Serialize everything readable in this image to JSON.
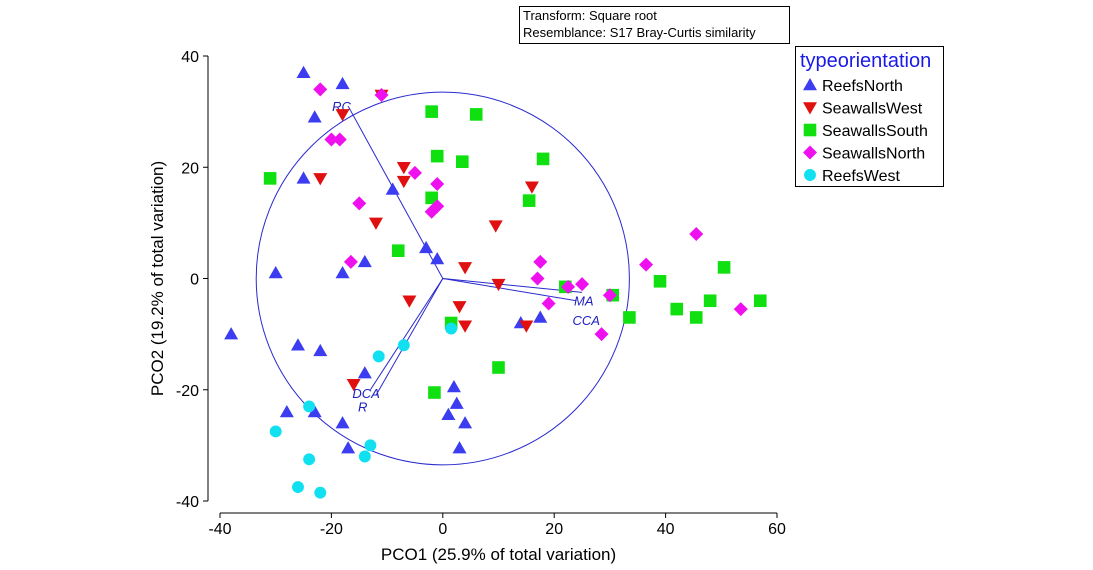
{
  "chart_data": {
    "type": "scatter",
    "title": "",
    "xlabel": "PCO1 (25.9% of total variation)",
    "ylabel": "PCO2 (19.2% of total variation)",
    "xlim": [
      -40,
      60
    ],
    "ylim": [
      -40,
      40
    ],
    "xticks": [
      "-40",
      "-20",
      "0",
      "20",
      "40",
      "60"
    ],
    "yticks": [
      "40",
      "20",
      "0",
      "-20",
      "-40"
    ],
    "info_lines": [
      "Transform: Square root",
      "Resemblance: S17 Bray-Curtis similarity"
    ],
    "legend_title": "typeorientation",
    "legend_position": "top-right",
    "circle_radius": 33.5,
    "vectors": [
      {
        "label": "RC",
        "x": -17,
        "y": 31
      },
      {
        "label": "MA",
        "x": 25,
        "y": -2.5
      },
      {
        "label": "CCA",
        "x": 24,
        "y": -4
      },
      {
        "label": "DCA",
        "x": -13,
        "y": -20
      },
      {
        "label": "R",
        "x": -12,
        "y": -21
      }
    ],
    "series": [
      {
        "name": "ReefsNorth",
        "marker": "triangle-up",
        "color": "#3c3cf0",
        "points": [
          [
            -25,
            37
          ],
          [
            -18,
            35
          ],
          [
            -23,
            29
          ],
          [
            -25,
            18
          ],
          [
            -9,
            16
          ],
          [
            -30,
            1
          ],
          [
            -18,
            1
          ],
          [
            -14,
            3
          ],
          [
            -3,
            5.5
          ],
          [
            -1,
            3.5
          ],
          [
            -38,
            -10
          ],
          [
            -26,
            -12
          ],
          [
            -22,
            -13
          ],
          [
            -14,
            -17
          ],
          [
            -28,
            -24
          ],
          [
            -23,
            -24
          ],
          [
            -18,
            -26
          ],
          [
            -17,
            -30.5
          ],
          [
            2,
            -19.5
          ],
          [
            2.5,
            -22.5
          ],
          [
            1,
            -24.5
          ],
          [
            4,
            -26
          ],
          [
            3,
            -30.5
          ],
          [
            14,
            -8
          ],
          [
            17.5,
            -7
          ]
        ]
      },
      {
        "name": "SeawallsWest",
        "marker": "triangle-down",
        "color": "#e01010",
        "points": [
          [
            -11,
            33
          ],
          [
            -18,
            29.5
          ],
          [
            -22,
            18
          ],
          [
            -7,
            20
          ],
          [
            -7,
            17.5
          ],
          [
            -12,
            10
          ],
          [
            16,
            16.5
          ],
          [
            9.5,
            9.5
          ],
          [
            4,
            2
          ],
          [
            3,
            -5
          ],
          [
            -6,
            -4
          ],
          [
            4,
            -8.5
          ],
          [
            10,
            -1
          ],
          [
            15,
            -8.5
          ],
          [
            -16,
            -19
          ]
        ]
      },
      {
        "name": "SeawallsSouth",
        "marker": "square",
        "color": "#10e010",
        "points": [
          [
            -2,
            30
          ],
          [
            6,
            29.5
          ],
          [
            -31,
            18
          ],
          [
            -1,
            22
          ],
          [
            3.5,
            21
          ],
          [
            18,
            21.5
          ],
          [
            -2,
            14.5
          ],
          [
            15.5,
            14
          ],
          [
            -8,
            5
          ],
          [
            22,
            -1.5
          ],
          [
            30.5,
            -3
          ],
          [
            39,
            -0.5
          ],
          [
            50.5,
            2
          ],
          [
            48,
            -4
          ],
          [
            57,
            -4
          ],
          [
            33.5,
            -7
          ],
          [
            42,
            -5.5
          ],
          [
            45.5,
            -7
          ],
          [
            1.5,
            -8
          ],
          [
            10,
            -16
          ],
          [
            -1.5,
            -20.5
          ]
        ]
      },
      {
        "name": "SeawallsNorth",
        "marker": "diamond",
        "color": "#ee10ee",
        "points": [
          [
            -22,
            34
          ],
          [
            -11,
            33
          ],
          [
            -20,
            25
          ],
          [
            -18.5,
            25
          ],
          [
            -5,
            19
          ],
          [
            -1,
            17
          ],
          [
            -1,
            13
          ],
          [
            -15,
            13.5
          ],
          [
            -2,
            12
          ],
          [
            -16.5,
            3
          ],
          [
            17.5,
            3
          ],
          [
            17,
            0
          ],
          [
            22.5,
            -1.5
          ],
          [
            25,
            -1
          ],
          [
            30,
            -3
          ],
          [
            19,
            -4.5
          ],
          [
            28.5,
            -10
          ],
          [
            36.5,
            2.5
          ],
          [
            45.5,
            8
          ],
          [
            53.5,
            -5.5
          ]
        ]
      },
      {
        "name": "ReefsWest",
        "marker": "circle",
        "color": "#10e0f0",
        "points": [
          [
            -7,
            -12
          ],
          [
            -11.5,
            -14
          ],
          [
            1.5,
            -9
          ],
          [
            -24,
            -23
          ],
          [
            -30,
            -27.5
          ],
          [
            -24,
            -32.5
          ],
          [
            -13,
            -30
          ],
          [
            -14,
            -32
          ],
          [
            -26,
            -37.5
          ],
          [
            -22,
            -38.5
          ]
        ]
      }
    ]
  }
}
